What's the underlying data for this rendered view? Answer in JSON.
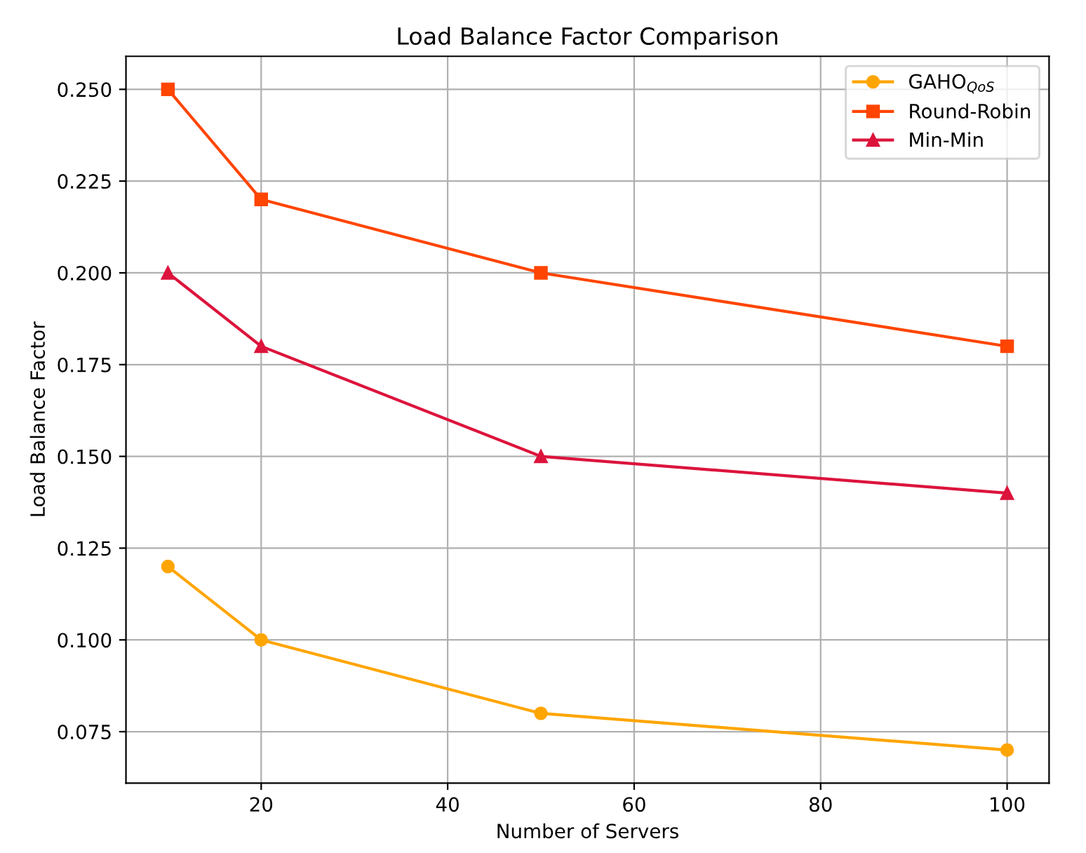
{
  "chart_data": {
    "type": "line",
    "title": "Load Balance Factor Comparison",
    "xlabel": "Number of Servers",
    "ylabel": "Load Balance Factor",
    "x": [
      10,
      20,
      50,
      100
    ],
    "series": [
      {
        "name": "GAHO$_{QoS}$",
        "color": "#ffa500",
        "marker": "circle",
        "values": [
          0.12,
          0.1,
          0.08,
          0.07
        ]
      },
      {
        "name": "Round-Robin",
        "color": "#ff4500",
        "marker": "square",
        "values": [
          0.25,
          0.22,
          0.2,
          0.18
        ]
      },
      {
        "name": "Min-Min",
        "color": "#dc143c",
        "marker": "triangle",
        "values": [
          0.2,
          0.18,
          0.15,
          0.14
        ]
      }
    ],
    "xlim": [
      5.5,
      104.5
    ],
    "xticks": [
      20,
      40,
      60,
      80,
      100
    ],
    "ylim": [
      0.061,
      0.259
    ],
    "yticks": [
      {
        "value": 0.075,
        "label": "0.075"
      },
      {
        "value": 0.1,
        "label": "0.100"
      },
      {
        "value": 0.125,
        "label": "0.125"
      },
      {
        "value": 0.15,
        "label": "0.150"
      },
      {
        "value": 0.175,
        "label": "0.175"
      },
      {
        "value": 0.2,
        "label": "0.200"
      },
      {
        "value": 0.225,
        "label": "0.225"
      },
      {
        "value": 0.25,
        "label": "0.250"
      }
    ],
    "grid": true,
    "legend": "top right",
    "line_style": "solid"
  }
}
